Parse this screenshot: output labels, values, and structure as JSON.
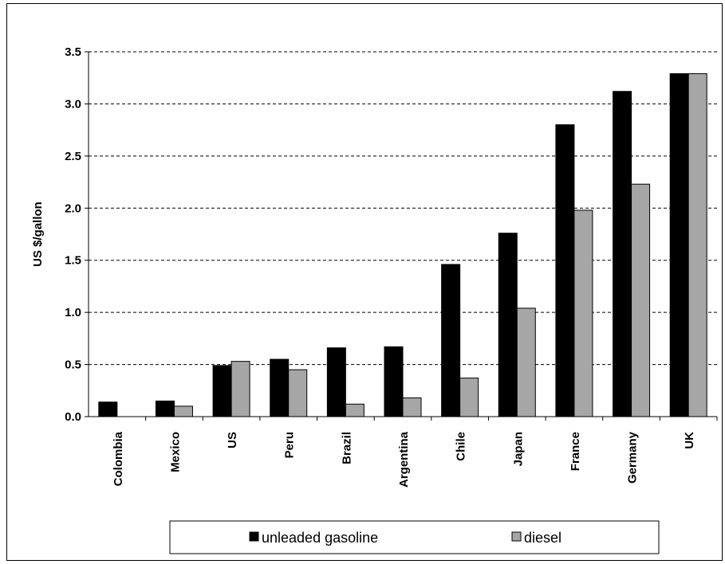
{
  "chart_data": {
    "type": "bar",
    "title": "",
    "xlabel": "",
    "ylabel": "US $/gallon",
    "categories": [
      "Colombia",
      "Mexico",
      "US",
      "Peru",
      "Brazil",
      "Argentina",
      "Chile",
      "Japan",
      "France",
      "Germany",
      "UK"
    ],
    "series": [
      {
        "name": "unleaded gasoline",
        "color": "#000000",
        "values": [
          0.14,
          0.15,
          0.49,
          0.55,
          0.66,
          0.67,
          1.46,
          1.76,
          2.8,
          3.12,
          3.29
        ]
      },
      {
        "name": "diesel",
        "color": "#a6a6a6",
        "values": [
          0.0,
          0.1,
          0.53,
          0.45,
          0.12,
          0.18,
          0.37,
          1.04,
          1.98,
          2.23,
          3.29
        ]
      }
    ],
    "yticks": [
      "0.0",
      "0.5",
      "1.0",
      "1.5",
      "2.0",
      "2.5",
      "3.0",
      "3.5"
    ],
    "ylim": [
      0,
      3.5
    ],
    "grid": "horizontal dashed",
    "legend_position": "bottom"
  }
}
